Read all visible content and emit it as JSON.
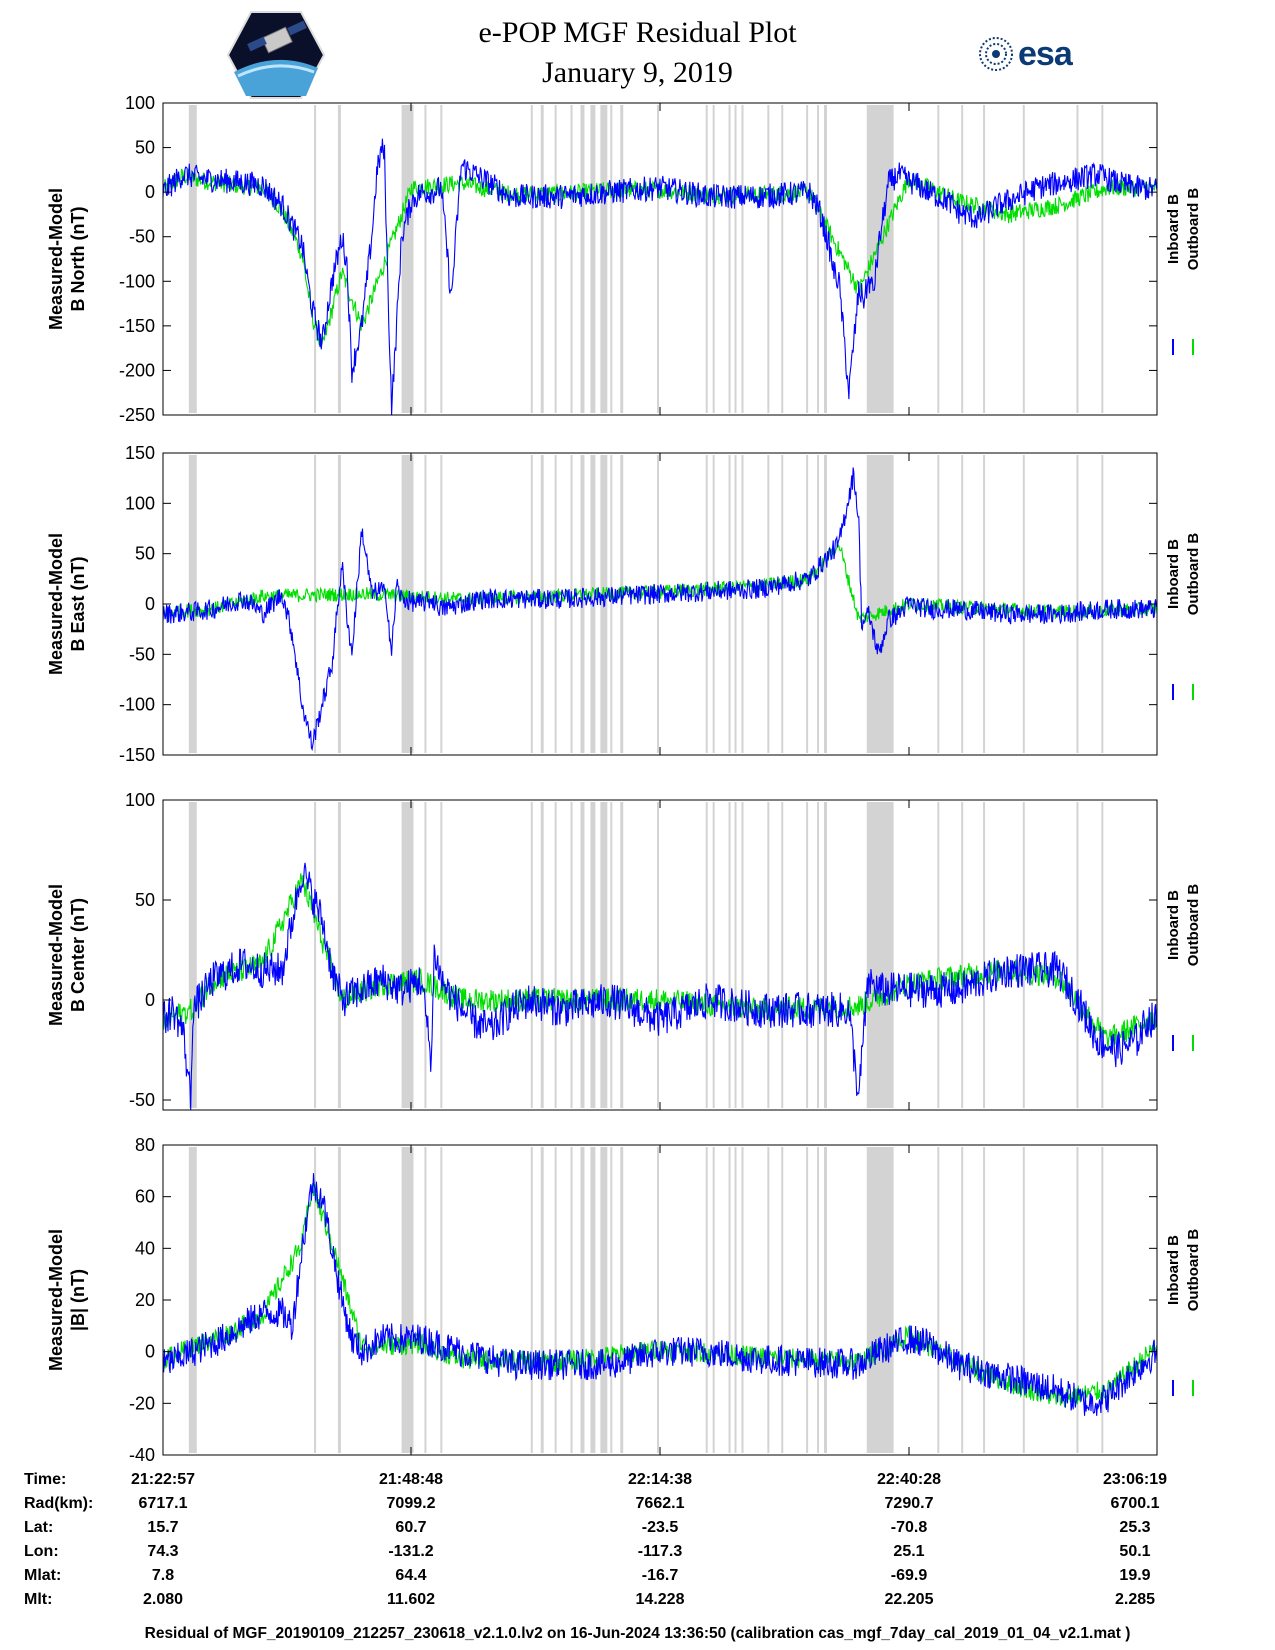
{
  "header": {
    "title": "e-POP MGF Residual Plot",
    "date": "January 9, 2019",
    "logo_left": "cassiope-satellite-logo",
    "logo_right": "esa"
  },
  "colors": {
    "inboard": "#0000ff",
    "outboard": "#00dd00",
    "gap_shading": "#d3d3d3",
    "axes": "#000000"
  },
  "chart_data": [
    {
      "type": "line",
      "id": "bnorth",
      "ylabel_line1": "Measured-Model",
      "ylabel_line2": "B North (nT)",
      "ylim": [
        -250,
        100
      ],
      "yticks": [
        100,
        50,
        0,
        -50,
        -100,
        -150,
        -200,
        -250
      ],
      "legend": [
        "Inboard B",
        "Outboard B"
      ],
      "series": [
        {
          "name": "Inboard B",
          "x": [
            0,
            2,
            4,
            7,
            10,
            12,
            14,
            15,
            15.5,
            16,
            17,
            18,
            18.5,
            19,
            20,
            21,
            21.5,
            22,
            22.3,
            22.6,
            23,
            23.4,
            24,
            25,
            26,
            27,
            28,
            29,
            30,
            35,
            40,
            45,
            50,
            55,
            60,
            65,
            66,
            67,
            67.5,
            68,
            69,
            70,
            70.5,
            71,
            71.5,
            72,
            73,
            74,
            75,
            76,
            77,
            78,
            79,
            80,
            82,
            84,
            86,
            88,
            90,
            92,
            94,
            96,
            98,
            100
          ],
          "values": [
            0,
            20,
            15,
            12,
            8,
            -15,
            -60,
            -130,
            -150,
            -170,
            -100,
            -50,
            -80,
            -200,
            -150,
            -50,
            20,
            50,
            40,
            -100,
            -240,
            -170,
            -50,
            -10,
            0,
            0,
            5,
            -120,
            30,
            -5,
            -5,
            0,
            5,
            -5,
            -5,
            0,
            -20,
            -60,
            -90,
            -100,
            -225,
            -110,
            -120,
            -100,
            -110,
            -60,
            10,
            20,
            12,
            8,
            0,
            -5,
            -10,
            -22,
            -30,
            -15,
            -5,
            5,
            10,
            15,
            20,
            10,
            5,
            3
          ],
          "noise": 14
        },
        {
          "name": "Outboard B",
          "x": [
            0,
            2,
            4,
            7,
            10,
            12,
            14,
            15,
            16,
            18,
            20,
            25,
            30,
            35,
            40,
            45,
            50,
            55,
            60,
            65,
            70,
            75,
            80,
            85,
            90,
            95,
            100
          ],
          "values": [
            3,
            18,
            13,
            8,
            5,
            -20,
            -70,
            -140,
            -175,
            -90,
            -150,
            5,
            10,
            -2,
            -2,
            2,
            3,
            -3,
            -3,
            0,
            -110,
            15,
            -10,
            -25,
            -15,
            5,
            5
          ],
          "noise": 10
        }
      ]
    },
    {
      "type": "line",
      "id": "beast",
      "ylabel_line1": "Measured-Model",
      "ylabel_line2": "B East (nT)",
      "ylim": [
        -150,
        150
      ],
      "yticks": [
        150,
        100,
        50,
        0,
        -50,
        -100,
        -150
      ],
      "legend": [
        "Inboard B",
        "Outboard B"
      ],
      "series": [
        {
          "name": "Inboard B",
          "x": [
            0,
            3,
            5,
            8,
            9,
            10,
            12,
            13,
            14,
            15,
            16,
            17,
            18,
            18.5,
            19,
            20,
            21,
            22,
            22.5,
            23,
            23.5,
            24,
            26,
            27,
            28,
            32,
            40,
            50,
            60,
            65,
            68,
            69.5,
            70,
            70.3,
            71,
            72,
            73,
            74,
            75,
            77,
            80,
            85,
            90,
            95,
            100
          ],
          "values": [
            -10,
            -8,
            -5,
            5,
            0,
            -10,
            10,
            -30,
            -100,
            -140,
            -100,
            -60,
            40,
            -10,
            -50,
            75,
            10,
            15,
            5,
            -50,
            20,
            5,
            0,
            5,
            -5,
            5,
            5,
            10,
            15,
            25,
            60,
            130,
            80,
            -20,
            -10,
            -50,
            -15,
            -10,
            0,
            -5,
            -5,
            -10,
            -10,
            -5,
            -5
          ],
          "noise": 10
        },
        {
          "name": "Outboard B",
          "x": [
            0,
            5,
            10,
            20,
            30,
            40,
            50,
            60,
            65,
            68,
            70,
            75,
            80,
            90,
            100
          ],
          "values": [
            -8,
            -5,
            8,
            10,
            5,
            8,
            12,
            18,
            25,
            60,
            -15,
            0,
            -3,
            -8,
            -5
          ],
          "noise": 7
        }
      ]
    },
    {
      "type": "line",
      "id": "bcenter",
      "ylabel_line1": "Measured-Model",
      "ylabel_line2": "B Center (nT)",
      "ylim": [
        -55,
        100
      ],
      "yticks": [
        100,
        50,
        0,
        -50
      ],
      "legend": [
        "Inboard B",
        "Outboard B"
      ],
      "series": [
        {
          "name": "Inboard B",
          "x": [
            0,
            1,
            2,
            2.8,
            3,
            5,
            8,
            10,
            12,
            13,
            14,
            16,
            17,
            18,
            20,
            22,
            24,
            26,
            27,
            27.3,
            28,
            29,
            31,
            33,
            35,
            37,
            40,
            45,
            50,
            55,
            60,
            65,
            69,
            70,
            70.5,
            71,
            72,
            75,
            80,
            85,
            90,
            92,
            94,
            96,
            98,
            99,
            100
          ],
          "values": [
            -10,
            -5,
            -15,
            -50,
            -5,
            10,
            18,
            15,
            15,
            40,
            65,
            40,
            15,
            0,
            5,
            10,
            5,
            10,
            -30,
            25,
            10,
            2,
            -10,
            -15,
            -5,
            0,
            -5,
            0,
            -10,
            0,
            -5,
            -5,
            -5,
            -50,
            -15,
            10,
            5,
            5,
            5,
            15,
            15,
            0,
            -20,
            -25,
            -20,
            -10,
            -10
          ],
          "noise": 9
        },
        {
          "name": "Outboard B",
          "x": [
            0,
            1,
            3,
            5,
            10,
            14,
            18,
            22,
            26,
            30,
            40,
            50,
            60,
            70,
            75,
            80,
            85,
            90,
            95,
            100
          ],
          "values": [
            -12,
            -8,
            -5,
            10,
            18,
            60,
            0,
            8,
            10,
            0,
            0,
            0,
            -5,
            -3,
            8,
            12,
            15,
            12,
            -20,
            -8
          ],
          "noise": 6
        }
      ]
    },
    {
      "type": "line",
      "id": "bmag",
      "ylabel_line1": "Measured-Model",
      "ylabel_line2": "|B| (nT)",
      "ylim": [
        -40,
        80
      ],
      "yticks": [
        80,
        60,
        40,
        20,
        0,
        -20,
        -40
      ],
      "legend": [
        "Inboard B",
        "Outboard B"
      ],
      "series": [
        {
          "name": "Inboard B",
          "x": [
            0,
            3,
            6,
            10,
            12,
            13,
            14,
            15,
            16,
            17,
            18,
            19,
            20,
            22,
            24,
            26,
            30,
            35,
            40,
            45,
            50,
            55,
            60,
            70,
            72,
            75,
            77,
            80,
            85,
            90,
            93,
            95,
            97,
            100
          ],
          "values": [
            -5,
            0,
            5,
            15,
            15,
            10,
            40,
            65,
            60,
            40,
            20,
            5,
            0,
            5,
            5,
            5,
            0,
            -5,
            -5,
            -5,
            0,
            0,
            -3,
            -5,
            0,
            5,
            3,
            -5,
            -10,
            -15,
            -20,
            -18,
            -10,
            0
          ],
          "noise": 6
        },
        {
          "name": "Outboard B",
          "x": [
            0,
            3,
            6,
            10,
            14,
            15,
            17,
            20,
            26,
            30,
            40,
            50,
            60,
            70,
            75,
            80,
            85,
            90,
            95,
            100
          ],
          "values": [
            -3,
            2,
            6,
            14,
            42,
            64,
            42,
            2,
            3,
            -3,
            -4,
            1,
            -2,
            -4,
            6,
            -4,
            -12,
            -18,
            -15,
            2
          ],
          "noise": 4
        }
      ]
    }
  ],
  "time_axis": {
    "rows": [
      {
        "label": "Time:",
        "values": [
          "21:22:57",
          "21:48:48",
          "22:14:38",
          "22:40:28",
          "23:06:19"
        ]
      },
      {
        "label": "Rad(km):",
        "values": [
          "6717.1",
          "7099.2",
          "7662.1",
          "7290.7",
          "6700.1"
        ]
      },
      {
        "label": "Lat:",
        "values": [
          "15.7",
          "60.7",
          "-23.5",
          "-70.8",
          "25.3"
        ]
      },
      {
        "label": "Lon:",
        "values": [
          "74.3",
          "-131.2",
          "-117.3",
          "25.1",
          "50.1"
        ]
      },
      {
        "label": "Mlat:",
        "values": [
          "7.8",
          "64.4",
          "-16.7",
          "-69.9",
          "19.9"
        ]
      },
      {
        "label": "Mlt:",
        "values": [
          "2.080",
          "11.602",
          "14.228",
          "22.205",
          "2.285"
        ]
      }
    ]
  },
  "gaps": {
    "bands": [
      [
        2.6,
        3.4
      ],
      [
        15.2,
        15.4
      ],
      [
        17.6,
        17.9
      ],
      [
        24.0,
        25.2
      ],
      [
        26.3,
        26.5
      ],
      [
        27.9,
        28.1
      ],
      [
        37.0,
        37.2
      ],
      [
        38.0,
        38.3
      ],
      [
        39.4,
        39.6
      ],
      [
        41.0,
        41.2
      ],
      [
        42.0,
        42.4
      ],
      [
        43.0,
        43.5
      ],
      [
        44.0,
        44.7
      ],
      [
        45.0,
        45.2
      ],
      [
        46.0,
        46.3
      ],
      [
        49.7,
        49.9
      ],
      [
        54.6,
        54.8
      ],
      [
        55.3,
        55.5
      ],
      [
        56.9,
        57.1
      ],
      [
        57.5,
        57.7
      ],
      [
        58.2,
        58.4
      ],
      [
        60.8,
        61.0
      ],
      [
        62.2,
        62.4
      ],
      [
        64.7,
        64.9
      ],
      [
        65.8,
        66.0
      ],
      [
        66.5,
        66.8
      ],
      [
        70.8,
        73.5
      ],
      [
        77.9,
        78.1
      ],
      [
        80.3,
        80.5
      ],
      [
        82.5,
        82.7
      ],
      [
        86.5,
        86.7
      ],
      [
        91.9,
        92.1
      ],
      [
        94.4,
        94.6
      ]
    ]
  },
  "footer": "Residual of MGF_20190109_212257_230618_v2.1.0.lv2 on 16-Jun-2024 13:36:50 (calibration cas_mgf_7day_cal_2019_01_04_v2.1.mat )"
}
